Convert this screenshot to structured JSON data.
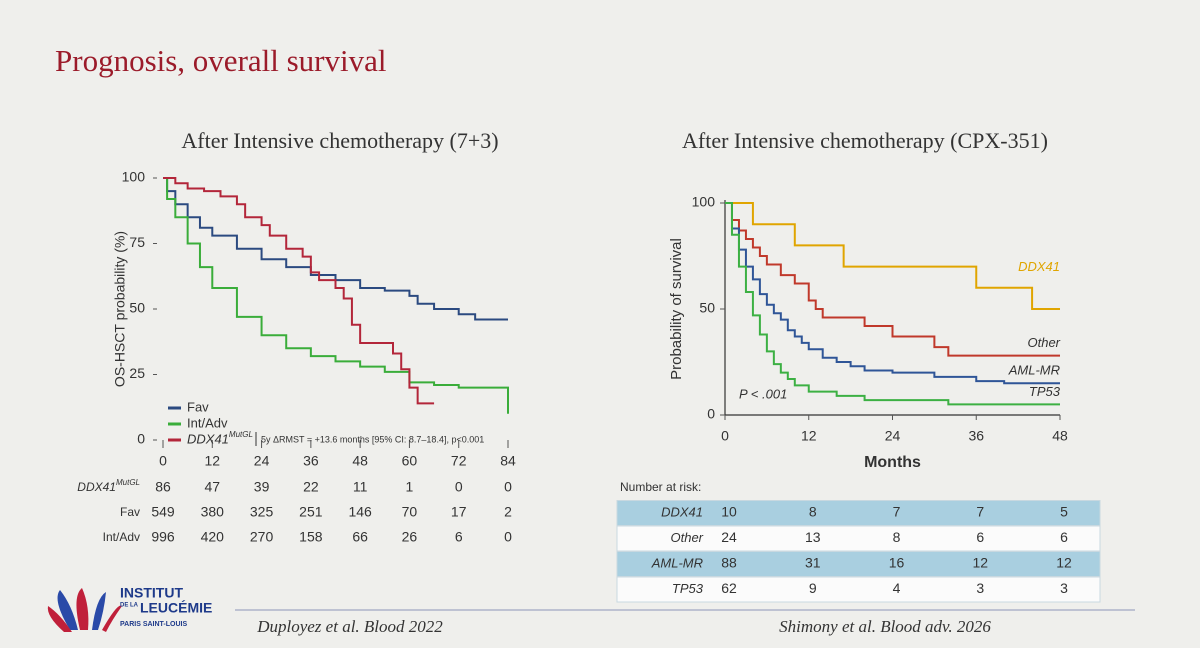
{
  "slide_title": "Prognosis, overall survival",
  "chart_data": [
    {
      "type": "line",
      "step": true,
      "title": "After Intensive chemotherapy (7+3)",
      "ylabel": "OS-HSCT probability (%)",
      "xlim": [
        0,
        84
      ],
      "xticks": [
        0,
        12,
        24,
        36,
        48,
        60,
        72,
        84
      ],
      "ylim": [
        0,
        100
      ],
      "yticks": [
        0,
        25,
        50,
        75,
        100
      ],
      "axes": false,
      "legend": "lower left",
      "annotation": "5y ΔRMST = +13.6 months [95% CI: 8.7–18.4], p<0.001",
      "series": [
        {
          "name": "Fav",
          "color": "#2b4a80",
          "x": [
            0,
            1,
            3,
            6,
            9,
            12,
            18,
            24,
            30,
            36,
            42,
            48,
            54,
            60,
            62,
            66,
            72,
            76,
            84
          ],
          "values": [
            100,
            95,
            90,
            85,
            81,
            78,
            73,
            69,
            66,
            63,
            61,
            58,
            57,
            55,
            52,
            50,
            48,
            46,
            46
          ]
        },
        {
          "name": "Int/Adv",
          "color": "#3aad3a",
          "x": [
            0,
            1,
            3,
            6,
            9,
            12,
            18,
            24,
            30,
            36,
            42,
            48,
            54,
            60,
            66,
            72,
            84
          ],
          "values": [
            100,
            92,
            85,
            75,
            66,
            58,
            47,
            40,
            35,
            32,
            30,
            28,
            26,
            22,
            21,
            20,
            10
          ]
        },
        {
          "name": "DDX41",
          "superscript": "MutGL",
          "color": "#b3263a",
          "x": [
            0,
            3,
            6,
            10,
            14,
            18,
            20,
            24,
            26,
            30,
            34,
            36,
            38,
            42,
            44,
            46,
            48,
            54,
            56,
            58,
            60,
            62,
            66
          ],
          "values": [
            100,
            98,
            96,
            95,
            93,
            90,
            85,
            82,
            78,
            73,
            70,
            64,
            61,
            58,
            54,
            44,
            37,
            37,
            33,
            27,
            20,
            14,
            14
          ]
        }
      ]
    },
    {
      "type": "line",
      "step": true,
      "title": "After Intensive chemotherapy (CPX-351)",
      "ylabel": "Probability of survival",
      "xlabel": "Months",
      "xlim": [
        0,
        48
      ],
      "xticks": [
        0,
        12,
        24,
        36,
        48
      ],
      "ylim": [
        0,
        100
      ],
      "yticks": [
        0,
        50,
        100
      ],
      "axes": true,
      "legend": "direct",
      "annotation": "P < .001",
      "series": [
        {
          "name": "DDX41",
          "color": "#e0a500",
          "x": [
            0,
            4,
            10,
            17,
            36,
            44,
            48
          ],
          "values": [
            100,
            90,
            80,
            70,
            60,
            50,
            50
          ]
        },
        {
          "name": "Other",
          "color": "#c0392b",
          "x": [
            0,
            1,
            2,
            3,
            4,
            5,
            6,
            8,
            10,
            12,
            13,
            14,
            18,
            20,
            24,
            30,
            32,
            48
          ],
          "values": [
            100,
            92,
            87,
            83,
            79,
            75,
            71,
            66,
            62,
            54,
            50,
            46,
            46,
            42,
            37,
            32,
            28,
            28
          ]
        },
        {
          "name": "AML-MR",
          "color": "#2f5597",
          "x": [
            0,
            1,
            2,
            3,
            4,
            5,
            6,
            7,
            8,
            9,
            10,
            11,
            12,
            14,
            16,
            18,
            20,
            24,
            30,
            36,
            40,
            48
          ],
          "values": [
            100,
            88,
            78,
            70,
            64,
            57,
            52,
            48,
            45,
            40,
            37,
            34,
            31,
            27,
            25,
            23,
            21,
            20,
            18,
            16,
            15,
            15
          ]
        },
        {
          "name": "TP53",
          "color": "#3cb043",
          "x": [
            0,
            1,
            2,
            3,
            4,
            5,
            6,
            7,
            8,
            9,
            10,
            12,
            16,
            20,
            24,
            32,
            48
          ],
          "values": [
            100,
            85,
            70,
            58,
            47,
            38,
            30,
            24,
            20,
            17,
            14,
            11,
            9,
            7,
            7,
            5,
            5
          ]
        }
      ]
    }
  ],
  "risk_table_1": {
    "rows": [
      {
        "label": "DDX41",
        "superscript": "MutGL",
        "values": [
          86,
          47,
          39,
          22,
          11,
          1,
          0,
          0
        ]
      },
      {
        "label": "Fav",
        "values": [
          549,
          380,
          325,
          251,
          146,
          70,
          17,
          2
        ]
      },
      {
        "label": "Int/Adv",
        "values": [
          996,
          420,
          270,
          158,
          66,
          26,
          6,
          0
        ]
      }
    ]
  },
  "risk_table_2": {
    "title": "Number at risk:",
    "rows": [
      {
        "label": "DDX41",
        "values": [
          10,
          8,
          7,
          7,
          5
        ]
      },
      {
        "label": "Other",
        "values": [
          24,
          13,
          8,
          6,
          6
        ]
      },
      {
        "label": "AML-MR",
        "values": [
          88,
          31,
          16,
          12,
          12
        ]
      },
      {
        "label": "TP53",
        "values": [
          62,
          9,
          4,
          3,
          3
        ]
      }
    ]
  },
  "logo": {
    "line1": "INSTITUT",
    "line2": "DE LA",
    "line3": "LEUCÉMIE",
    "line4": "PARIS SAINT-LOUIS"
  },
  "citations": [
    "Duployez et al. Blood 2022",
    "Shimony et al. Blood adv. 2026"
  ]
}
